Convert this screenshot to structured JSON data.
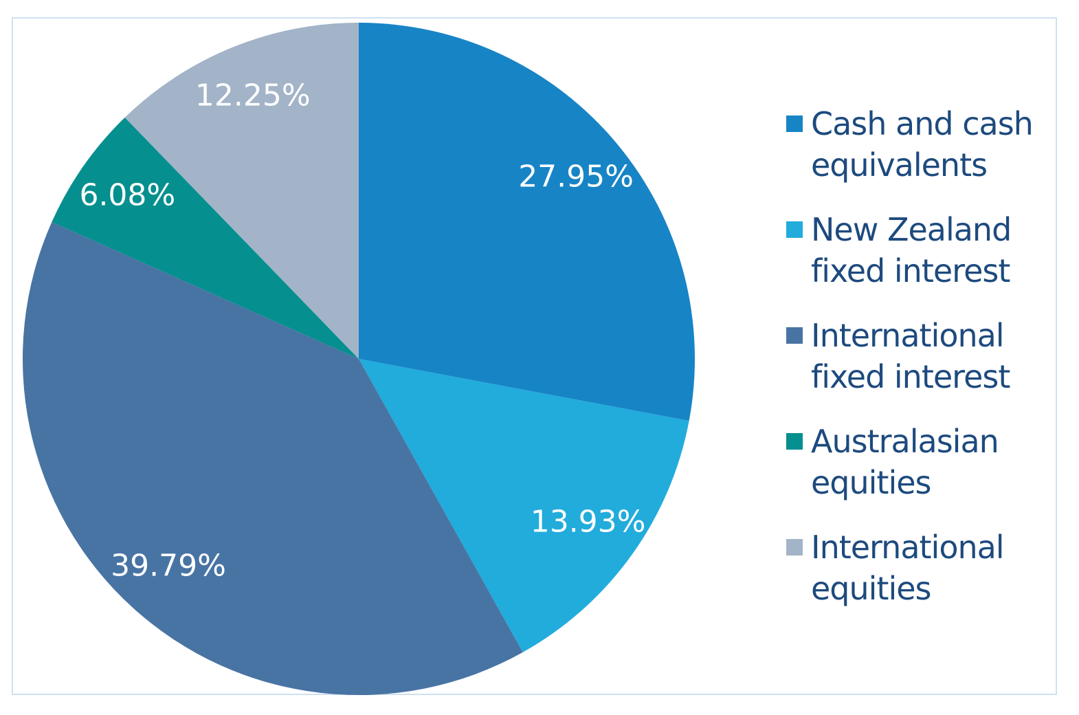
{
  "chart_data": {
    "type": "pie",
    "title": "",
    "start_angle": "12 o'clock, clockwise",
    "legend_position": "right",
    "slices": [
      {
        "name": "Cash and cash equivalents",
        "label_lines": [
          "Cash and cash",
          "equivalents"
        ],
        "value": 27.95,
        "label": "27.95%",
        "color": "#1784c6"
      },
      {
        "name": "New Zealand fixed interest",
        "label_lines": [
          "New Zealand",
          "fixed interest"
        ],
        "value": 13.93,
        "label": "13.93%",
        "color": "#21acdc"
      },
      {
        "name": "International fixed interest",
        "label_lines": [
          "International",
          "fixed interest"
        ],
        "value": 39.79,
        "label": "39.79%",
        "color": "#4874a4"
      },
      {
        "name": "Australasian equities",
        "label_lines": [
          "Australasian",
          "equities"
        ],
        "value": 6.08,
        "label": "6.08%",
        "color": "#068f8f"
      },
      {
        "name": "International equities",
        "label_lines": [
          "International",
          "equities"
        ],
        "value": 12.25,
        "label": "12.25%",
        "color": "#a3b4c8"
      }
    ]
  }
}
